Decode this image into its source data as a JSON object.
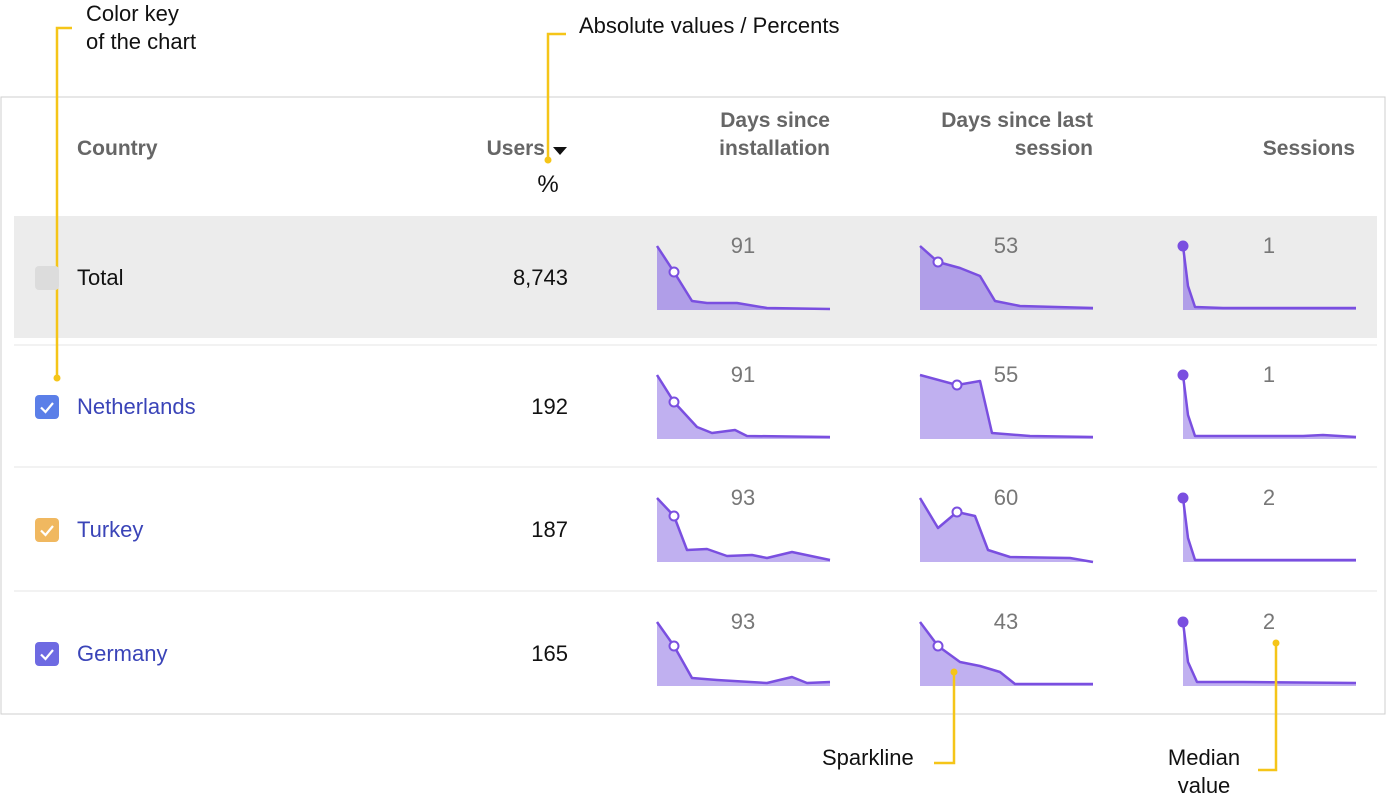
{
  "annotations": {
    "color_key": [
      "Color key",
      "of the chart"
    ],
    "absolute_percents": "Absolute values / Percents",
    "sparkline": "Sparkline",
    "median": [
      "Median",
      "value"
    ]
  },
  "header": {
    "country": "Country",
    "users": "Users",
    "users_unit": "%",
    "install": [
      "Days since",
      "installation"
    ],
    "last_session": [
      "Days since last",
      "session"
    ],
    "sessions": "Sessions"
  },
  "rows": [
    {
      "country": "Total",
      "users": "8,743",
      "install": 91,
      "last_session": 53,
      "sessions": 1
    },
    {
      "country": "Netherlands",
      "users": 192,
      "install": 91,
      "last_session": 55,
      "sessions": 1
    },
    {
      "country": "Turkey",
      "users": 187,
      "install": 93,
      "last_session": 60,
      "sessions": 2
    },
    {
      "country": "Germany",
      "users": 165,
      "install": 93,
      "last_session": 43,
      "sessions": 2
    }
  ]
}
